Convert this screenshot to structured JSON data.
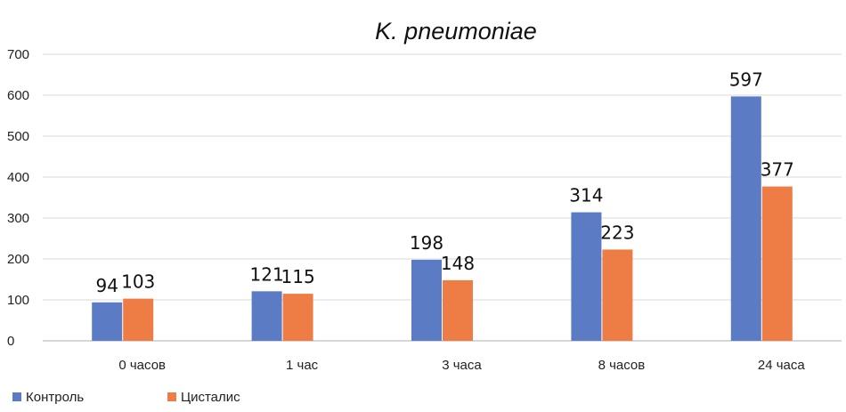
{
  "chart_data": {
    "type": "bar",
    "title": "K. pneumoniae",
    "categories": [
      "0 часов",
      "1 час",
      "3 часа",
      "8 часов",
      "24 часа"
    ],
    "series": [
      {
        "name": "Контроль",
        "color": "#5b7cc4",
        "values": [
          94,
          121,
          198,
          314,
          597
        ]
      },
      {
        "name": "Цисталис",
        "color": "#ee7d45",
        "values": [
          103,
          115,
          148,
          223,
          377
        ]
      }
    ],
    "ylim": [
      0,
      700
    ],
    "yticks": [
      0,
      100,
      200,
      300,
      400,
      500,
      600,
      700
    ],
    "grid": true,
    "legend": "bottom-left",
    "data_labels": true
  }
}
